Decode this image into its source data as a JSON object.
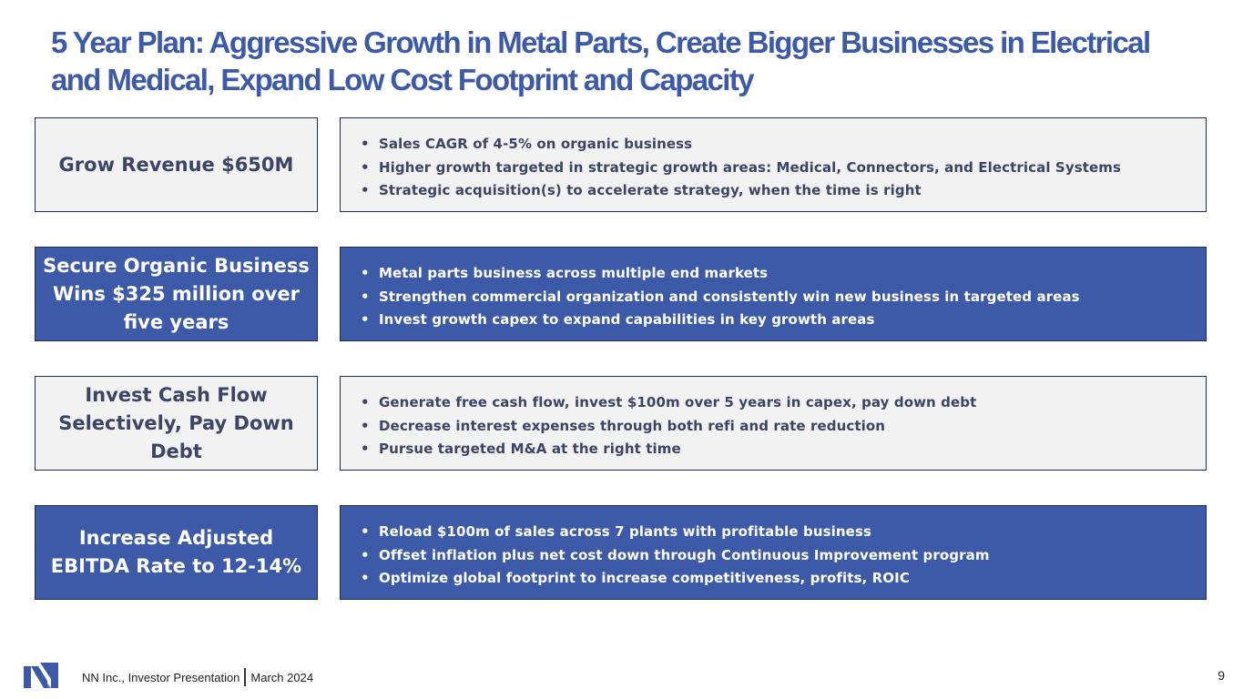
{
  "title": "5 Year Plan: Aggressive Growth in Metal Parts, Create Bigger Businesses in Electrical and Medical, Expand Low Cost Footprint and Capacity",
  "rows": [
    {
      "label": "Grow Revenue $650M",
      "bullets": [
        "Sales CAGR of 4-5% on organic business",
        "Higher growth targeted in strategic growth areas: Medical, Connectors, and Electrical Systems",
        "Strategic acquisition(s) to accelerate strategy, when the time is right"
      ]
    },
    {
      "label": "Secure Organic Business Wins $325 million over five years",
      "bullets": [
        "Metal parts business across multiple end markets",
        "Strengthen commercial organization and consistently win new business in targeted areas",
        "Invest growth capex to expand capabilities in key growth areas"
      ]
    },
    {
      "label": "Invest Cash Flow Selectively, Pay Down Debt",
      "bullets": [
        "Generate free cash flow, invest $100m over 5 years in capex, pay down debt",
        "Decrease interest expenses through both refi and rate reduction",
        "Pursue targeted M&A at the right time"
      ]
    },
    {
      "label": "Increase Adjusted EBITDA Rate to 12-14%",
      "bullets": [
        "Reload $100m of sales across 7 plants with profitable business",
        "Offset inflation plus net cost down through Continuous Improvement program",
        "Optimize global footprint to increase competitiveness, profits, ROIC"
      ]
    }
  ],
  "footer": {
    "company": "NN Inc., Investor Presentation",
    "date": "March 2024",
    "page_number": "9",
    "logo_icon": "nn-logo-icon"
  },
  "colors": {
    "brand_blue": "#3d5aa9",
    "light_box": "#f2f2f2",
    "dark_text": "#3d4566"
  }
}
